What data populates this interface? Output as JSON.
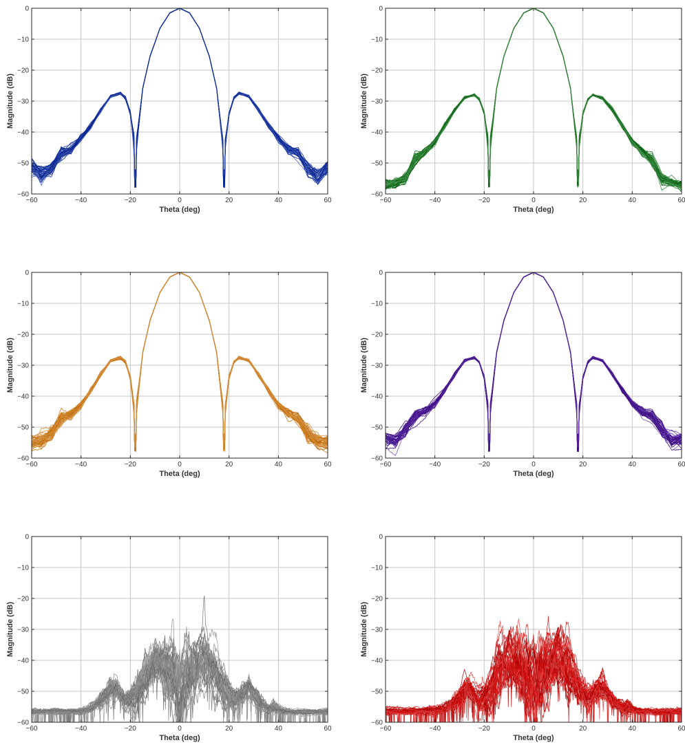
{
  "chart_data": [
    {
      "type": "line",
      "panel": "top-left",
      "xlabel": "Theta (deg)",
      "ylabel": "Magnitude (dB)",
      "xlim": [
        -60,
        60
      ],
      "ylim": [
        -60,
        0
      ],
      "xticks": [
        -60,
        -40,
        -20,
        0,
        20,
        40,
        60
      ],
      "yticks": [
        0,
        -10,
        -20,
        -30,
        -40,
        -50,
        -60
      ],
      "grid": true,
      "color": "#0a2a9e",
      "pattern": "array",
      "trace_count": 40,
      "x": [
        -60,
        -56,
        -52,
        -48,
        -44,
        -40,
        -36,
        -32,
        -28,
        -24,
        -22,
        -20,
        -18.5,
        -18,
        -17.5,
        -15,
        -12,
        -8,
        -4,
        0,
        4,
        8,
        12,
        15,
        17.5,
        18,
        18.5,
        20,
        22,
        24,
        28,
        32,
        36,
        40,
        44,
        48,
        52,
        56,
        60
      ],
      "y": [
        -51.5,
        -54,
        -52,
        -47,
        -45.5,
        -42,
        -38,
        -33,
        -28.5,
        -27.5,
        -29,
        -34,
        -44,
        -56,
        -44,
        -26,
        -15.5,
        -6.5,
        -1.5,
        0,
        -1.5,
        -6.5,
        -15.5,
        -26,
        -44,
        -56,
        -44,
        -34,
        -29,
        -27.5,
        -28.5,
        -33,
        -38,
        -42,
        -45.5,
        -47,
        -52,
        -54,
        -51.5
      ],
      "y_spread": [
        1.5,
        1.5,
        1.2,
        1.0,
        0.8,
        0.5,
        0.4,
        0.3,
        0.2,
        0.2,
        0.2,
        0.3,
        1,
        1,
        1,
        0.1,
        0.05,
        0.02,
        0.01,
        0,
        0.01,
        0.02,
        0.05,
        0.1,
        1,
        1,
        1,
        0.3,
        0.2,
        0.2,
        0.2,
        0.3,
        0.4,
        0.5,
        0.8,
        1.0,
        1.2,
        1.5,
        1.5
      ]
    },
    {
      "type": "line",
      "panel": "top-right",
      "xlabel": "Theta (deg)",
      "ylabel": "Magnitude (dB)",
      "xlim": [
        -60,
        60
      ],
      "ylim": [
        -60,
        0
      ],
      "xticks": [
        -60,
        -40,
        -20,
        0,
        20,
        40,
        60
      ],
      "yticks": [
        0,
        -10,
        -20,
        -30,
        -40,
        -50,
        -60
      ],
      "grid": true,
      "color": "#0a6e14",
      "pattern": "array",
      "trace_count": 40,
      "x": [
        -60,
        -56,
        -52,
        -48,
        -44,
        -40,
        -36,
        -32,
        -28,
        -24,
        -22,
        -20,
        -18.5,
        -18,
        -17.5,
        -15,
        -12,
        -8,
        -4,
        0,
        4,
        8,
        12,
        15,
        17.5,
        18,
        18.5,
        20,
        22,
        24,
        28,
        32,
        36,
        40,
        44,
        48,
        52,
        56,
        60
      ],
      "y": [
        -57,
        -56.5,
        -55,
        -49,
        -46.5,
        -43,
        -38,
        -33,
        -29,
        -28,
        -29.5,
        -34,
        -44,
        -56,
        -44,
        -26,
        -15.5,
        -6.5,
        -1.5,
        0,
        -1.5,
        -6.5,
        -15.5,
        -26,
        -44,
        -56,
        -44,
        -34,
        -29.5,
        -28,
        -29,
        -33,
        -38,
        -43,
        -46.5,
        -49,
        -55,
        -56.5,
        -57
      ],
      "y_spread": [
        0.8,
        0.8,
        1.0,
        0.9,
        0.7,
        0.5,
        0.4,
        0.3,
        0.2,
        0.2,
        0.2,
        0.3,
        1,
        1,
        1,
        0.1,
        0.05,
        0.02,
        0.01,
        0,
        0.01,
        0.02,
        0.05,
        0.1,
        1,
        1,
        1,
        0.3,
        0.2,
        0.2,
        0.2,
        0.3,
        0.4,
        0.5,
        0.7,
        0.9,
        1.0,
        0.8,
        0.8
      ]
    },
    {
      "type": "line",
      "panel": "middle-left",
      "xlabel": "Theta (deg)",
      "ylabel": "Magnitude (dB)",
      "xlim": [
        -60,
        60
      ],
      "ylim": [
        -60,
        0
      ],
      "xticks": [
        -60,
        -40,
        -20,
        0,
        20,
        40,
        60
      ],
      "yticks": [
        0,
        -10,
        -20,
        -30,
        -40,
        -50,
        -60
      ],
      "grid": true,
      "color": "#c8700a",
      "pattern": "array",
      "trace_count": 40,
      "x": [
        -60,
        -56,
        -52,
        -48,
        -44,
        -40,
        -36,
        -32,
        -28,
        -24,
        -22,
        -20,
        -18.5,
        -18,
        -17.5,
        -15,
        -12,
        -8,
        -4,
        0,
        4,
        8,
        12,
        15,
        17.5,
        18,
        18.5,
        20,
        22,
        24,
        28,
        32,
        36,
        40,
        44,
        48,
        52,
        56,
        60
      ],
      "y": [
        -55,
        -54.5,
        -52,
        -47,
        -45.5,
        -43,
        -38,
        -33,
        -28.5,
        -27.5,
        -29,
        -34,
        -44,
        -56,
        -44,
        -26,
        -15.5,
        -6.5,
        -1.5,
        0,
        -1.5,
        -6.5,
        -15.5,
        -26,
        -44,
        -56,
        -44,
        -34,
        -29,
        -27.5,
        -28.5,
        -33,
        -38,
        -43,
        -45.5,
        -47,
        -52,
        -54.5,
        -55
      ],
      "y_spread": [
        1.2,
        1.2,
        1.5,
        1.0,
        0.8,
        0.5,
        0.4,
        0.3,
        0.2,
        0.2,
        0.2,
        0.3,
        1,
        1,
        1,
        0.1,
        0.05,
        0.02,
        0.01,
        0,
        0.01,
        0.02,
        0.05,
        0.1,
        1,
        1,
        1,
        0.3,
        0.2,
        0.2,
        0.2,
        0.3,
        0.4,
        0.5,
        0.8,
        1.0,
        1.5,
        1.2,
        1.2
      ]
    },
    {
      "type": "line",
      "panel": "middle-right",
      "xlabel": "Theta (deg)",
      "ylabel": "Magnitude (dB)",
      "xlim": [
        -60,
        60
      ],
      "ylim": [
        -60,
        0
      ],
      "xticks": [
        -60,
        -40,
        -20,
        0,
        20,
        40,
        60
      ],
      "yticks": [
        0,
        -10,
        -20,
        -30,
        -40,
        -50,
        -60
      ],
      "grid": true,
      "color": "#4a149a",
      "pattern": "array",
      "trace_count": 40,
      "x": [
        -60,
        -56,
        -52,
        -48,
        -44,
        -40,
        -36,
        -32,
        -28,
        -24,
        -22,
        -20,
        -18.5,
        -18,
        -17.5,
        -15,
        -12,
        -8,
        -4,
        0,
        4,
        8,
        12,
        15,
        17.5,
        18,
        18.5,
        20,
        22,
        24,
        28,
        32,
        36,
        40,
        44,
        48,
        52,
        56,
        60
      ],
      "y": [
        -54,
        -54.5,
        -51,
        -46.5,
        -45,
        -42.5,
        -38,
        -33,
        -28.5,
        -27.5,
        -29,
        -34,
        -44,
        -56,
        -44,
        -26,
        -15.5,
        -6.5,
        -1.5,
        0,
        -1.5,
        -6.5,
        -15.5,
        -26,
        -44,
        -56,
        -44,
        -34,
        -29,
        -27.5,
        -28.5,
        -33,
        -38,
        -42.5,
        -45,
        -46.5,
        -51,
        -54.5,
        -54
      ],
      "y_spread": [
        1.2,
        1.2,
        1.3,
        1.0,
        0.8,
        0.5,
        0.4,
        0.3,
        0.2,
        0.2,
        0.2,
        0.3,
        1,
        1,
        1,
        0.1,
        0.05,
        0.02,
        0.01,
        0,
        0.01,
        0.02,
        0.05,
        0.1,
        1,
        1,
        1,
        0.3,
        0.2,
        0.2,
        0.2,
        0.3,
        0.4,
        0.5,
        0.8,
        1.0,
        1.3,
        1.2,
        1.2
      ]
    },
    {
      "type": "line",
      "panel": "bottom-left",
      "xlabel": "Theta (deg)",
      "ylabel": "Magnitude (dB)",
      "xlim": [
        -60,
        60
      ],
      "ylim": [
        -60,
        0
      ],
      "xticks": [
        -60,
        -40,
        -20,
        0,
        20,
        40,
        60
      ],
      "yticks": [
        0,
        -10,
        -20,
        -30,
        -40,
        -50,
        -60
      ],
      "grid": true,
      "color": "#808080",
      "pattern": "noise",
      "trace_count": 40,
      "x": [
        -60,
        -50,
        -40,
        -36,
        -32,
        -28,
        -26,
        -22,
        -18,
        -14,
        -10,
        -6,
        -3,
        0,
        3,
        6,
        10,
        14,
        18,
        22,
        26,
        28,
        32,
        36,
        38,
        42,
        50,
        60
      ],
      "y": [
        -56.5,
        -56.5,
        -56.5,
        -55.5,
        -53,
        -49.5,
        -49,
        -53,
        -51,
        -45,
        -40,
        -41,
        -46,
        -50,
        -46,
        -41,
        -39.5,
        -43,
        -49,
        -53,
        -49.5,
        -49,
        -53,
        -55.5,
        -55,
        -56.5,
        -56.5,
        -56.5
      ],
      "y_spread": [
        0.5,
        0.5,
        0.5,
        0.8,
        1.5,
        2,
        2,
        2,
        3,
        4,
        4,
        5,
        6,
        7,
        6,
        5,
        4,
        4,
        3,
        2,
        2,
        2,
        1.5,
        0.8,
        1,
        0.5,
        0.5,
        0.5
      ]
    },
    {
      "type": "line",
      "panel": "bottom-right",
      "xlabel": "Theta (deg)",
      "ylabel": "Magnitude (dB)",
      "xlim": [
        -60,
        60
      ],
      "ylim": [
        -60,
        0
      ],
      "xticks": [
        -60,
        -40,
        -20,
        0,
        20,
        40,
        60
      ],
      "yticks": [
        0,
        -10,
        -20,
        -30,
        -40,
        -50,
        -60
      ],
      "grid": true,
      "color": "#cc0000",
      "pattern": "noise",
      "trace_count": 40,
      "x": [
        -60,
        -50,
        -40,
        -36,
        -32,
        -28,
        -26,
        -22,
        -18,
        -14,
        -10,
        -6,
        -3,
        0,
        3,
        6,
        10,
        14,
        18,
        22,
        26,
        28,
        32,
        36,
        38,
        42,
        50,
        60
      ],
      "y": [
        -56.5,
        -56.5,
        -56.5,
        -55.5,
        -53,
        -49.5,
        -49,
        -53,
        -51,
        -44,
        -39,
        -40,
        -45,
        -49,
        -45,
        -40,
        -39,
        -42,
        -49,
        -53,
        -49.5,
        -49,
        -53,
        -55.5,
        -55,
        -56.5,
        -56.5,
        -56.5
      ],
      "y_spread": [
        0.6,
        0.6,
        0.6,
        0.8,
        1.5,
        2,
        2,
        2,
        3,
        4.5,
        4.5,
        5.5,
        6.5,
        7.5,
        6.5,
        5.5,
        4.5,
        4.5,
        3,
        2,
        2,
        2,
        1.5,
        0.8,
        1,
        0.6,
        0.6,
        0.6
      ]
    }
  ]
}
